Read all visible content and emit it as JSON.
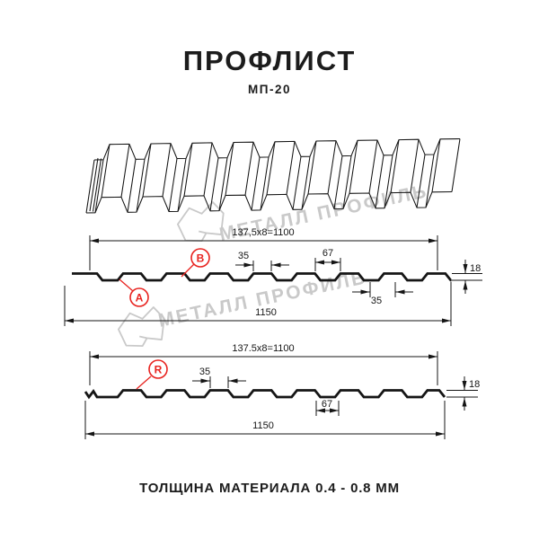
{
  "page": {
    "title": "ПРОФЛИСТ",
    "subtitle": "МП-20",
    "footer": "ТОЛЩИНА МАТЕРИАЛА 0.4 - 0.8 ММ"
  },
  "watermark": {
    "brand": "МЕТАЛЛ ПРОФИЛЬ"
  },
  "section_top": {
    "coverage_width": "137,5x8=1100",
    "overall_width": "1150",
    "rib_top_width": "35",
    "valley_width": "67",
    "profile_height": "18",
    "rib_base_width": "35",
    "labels": {
      "a": "A",
      "b": "B"
    }
  },
  "section_bottom": {
    "coverage_width": "137.5x8=1100",
    "overall_width": "1150",
    "rib_top_width": "35",
    "valley_width": "67",
    "profile_height": "18",
    "labels": {
      "r": "R"
    }
  },
  "colors": {
    "accent_red": "#e8231f",
    "line": "#151515",
    "watermark_gray": "#c9c9c9"
  }
}
